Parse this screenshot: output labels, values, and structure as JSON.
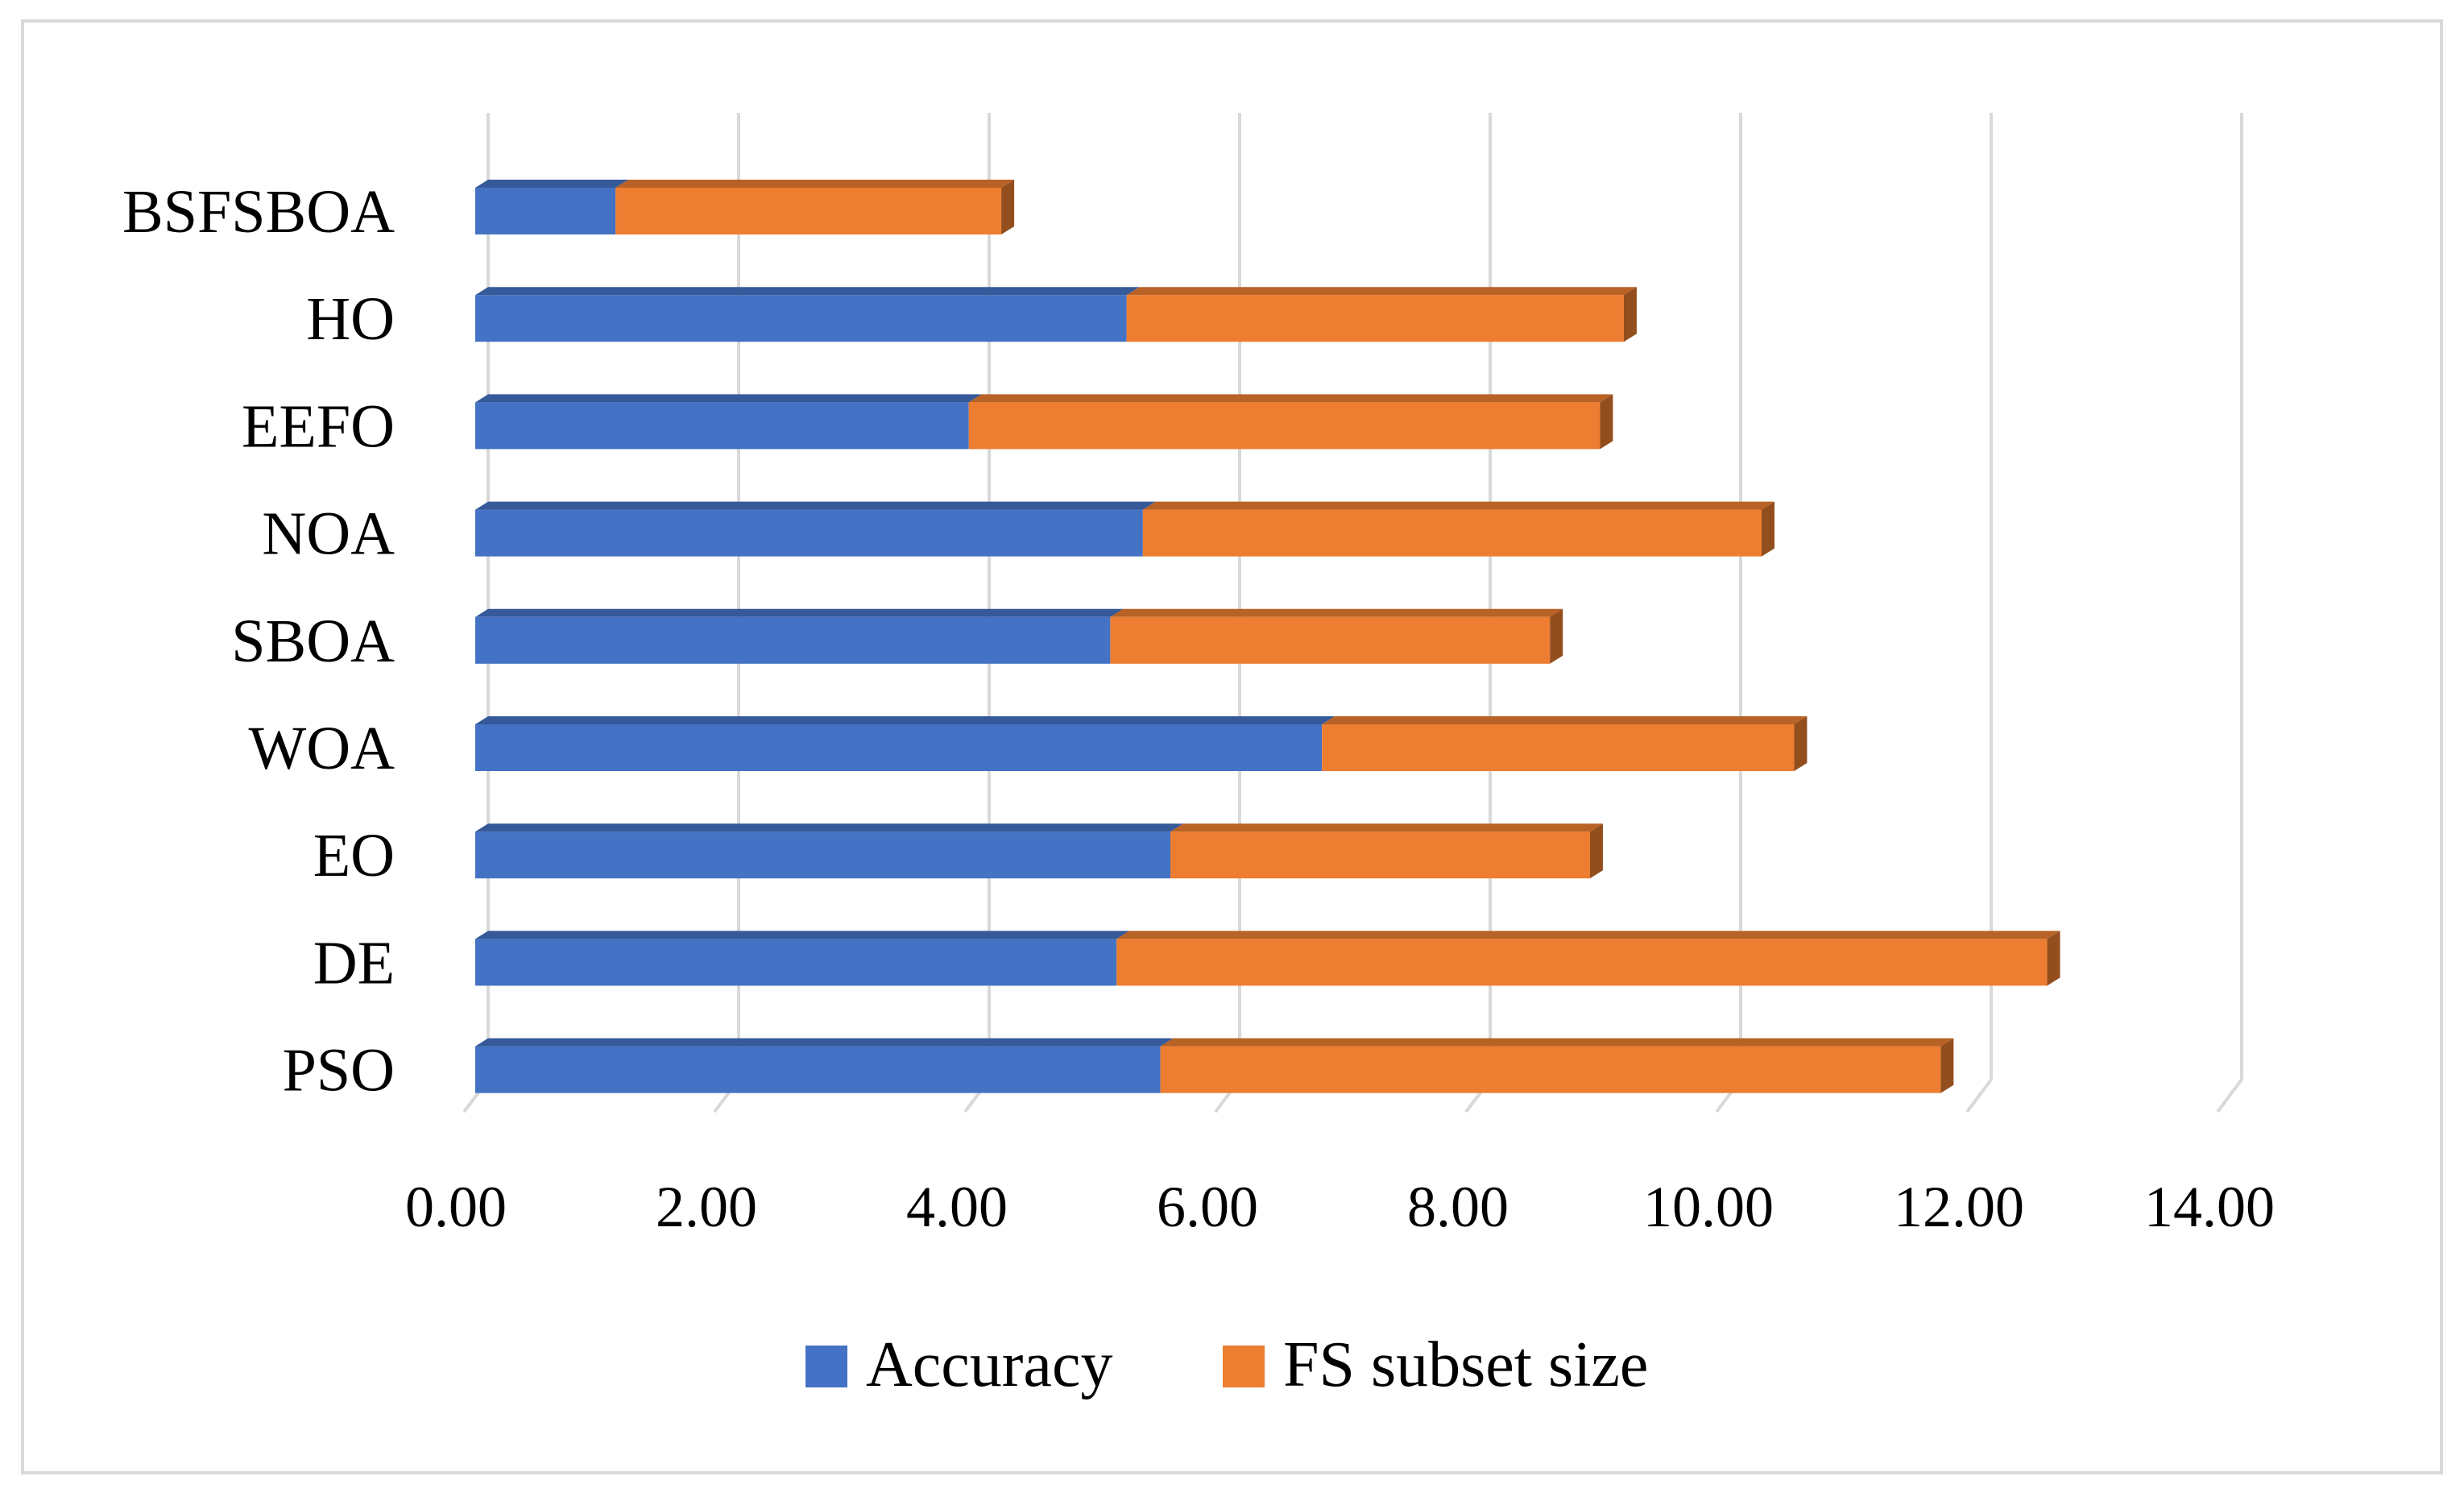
{
  "chart_data": {
    "type": "bar",
    "orientation": "horizontal",
    "stacked": true,
    "style": "3d",
    "categories": [
      "BSFSBOA",
      "HO",
      "EEFO",
      "NOA",
      "SBOA",
      "WOA",
      "EO",
      "DE",
      "PSO"
    ],
    "series": [
      {
        "name": "Accuracy",
        "color": "#4472C4",
        "values": [
          1.12,
          5.2,
          3.94,
          5.33,
          5.07,
          6.76,
          5.55,
          5.12,
          5.47
        ]
      },
      {
        "name": "FS subset size",
        "color": "#ED7D31",
        "values": [
          3.08,
          3.97,
          5.04,
          4.94,
          3.51,
          3.77,
          3.35,
          7.43,
          6.23
        ]
      }
    ],
    "xticks": [
      "0.00",
      "2.00",
      "4.00",
      "6.00",
      "8.00",
      "10.00",
      "12.00",
      "14.00"
    ],
    "xlim": [
      0,
      14
    ],
    "grid": true,
    "legend_position": "bottom"
  }
}
